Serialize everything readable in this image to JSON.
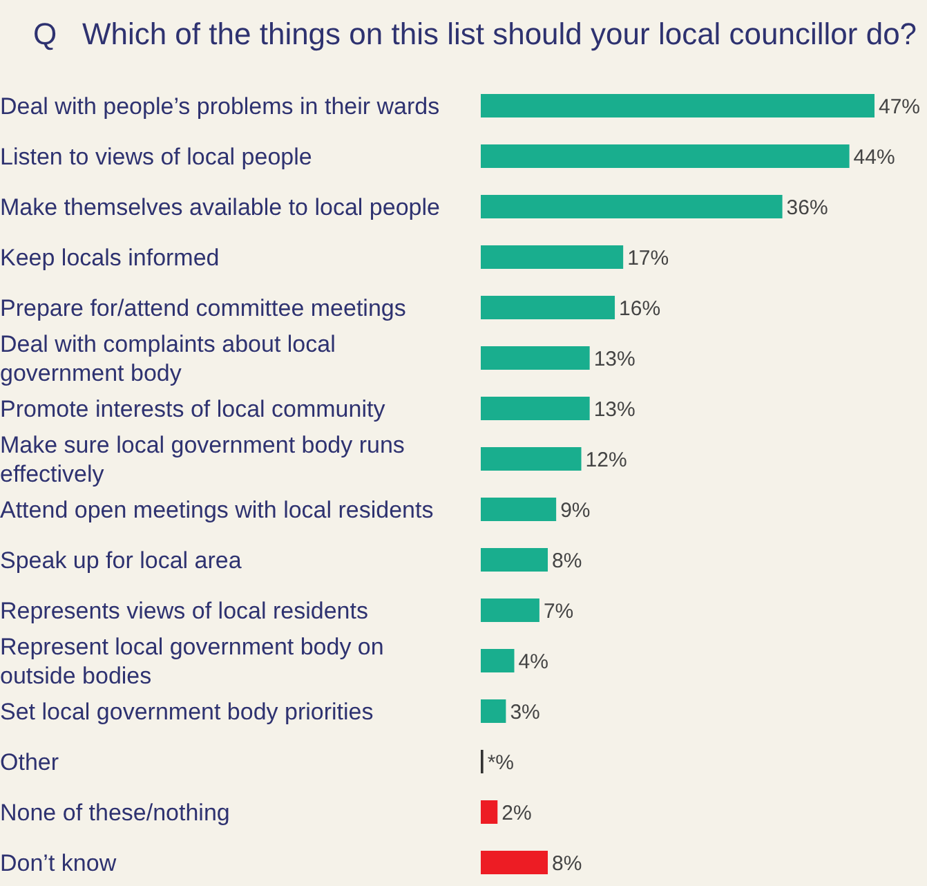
{
  "chart_data": {
    "type": "bar",
    "orientation": "horizontal",
    "title": "Q   Which of the things on this list should your local councillor do?",
    "categories": [
      "Deal with people’s problems in their wards",
      "Listen to views of local people",
      "Make themselves available to local people",
      "Keep locals informed",
      "Prepare for/attend committee meetings",
      "Deal with complaints about local government body",
      "Promote interests of local community",
      "Make sure local government body runs effectively",
      "Attend open meetings with local residents",
      "Speak up for local area",
      "Represents views of local residents",
      "Represent local government body on outside bodies",
      "Set local government body priorities",
      "Other",
      "None of these/nothing",
      "Don’t know"
    ],
    "values": [
      47,
      44,
      36,
      17,
      16,
      13,
      13,
      12,
      9,
      8,
      7,
      4,
      3,
      0.3,
      2,
      8
    ],
    "colors": [
      "#19ae8e",
      "#19ae8e",
      "#19ae8e",
      "#19ae8e",
      "#19ae8e",
      "#19ae8e",
      "#19ae8e",
      "#19ae8e",
      "#19ae8e",
      "#19ae8e",
      "#19ae8e",
      "#19ae8e",
      "#19ae8e",
      "#333333",
      "#ed1c24",
      "#ed1c24"
    ],
    "value_labels": [
      "47%",
      "44%",
      "36%",
      "17%",
      "16%",
      "13%",
      "13%",
      "12%",
      "9%",
      "8%",
      "7%",
      "4%",
      "3%",
      "*%",
      "2%",
      "8%"
    ]
  }
}
